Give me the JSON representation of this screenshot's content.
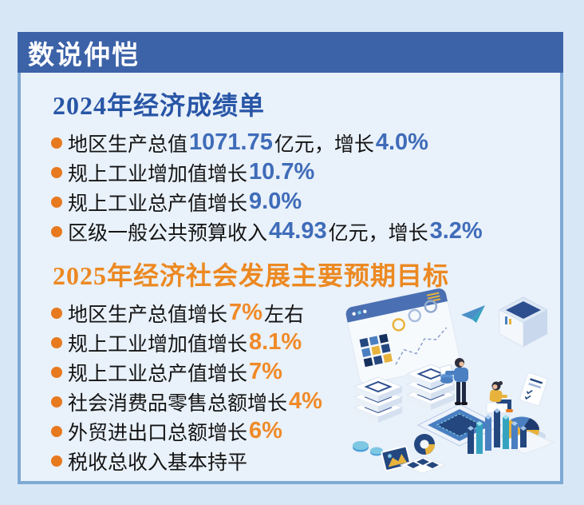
{
  "panel": {
    "header": {
      "title": "数说仲恺"
    },
    "colors": {
      "header_bg": "#3c62a8",
      "body_bg": "#e9f1fa",
      "border": "#7fa9d5",
      "page_bg": "#d8e7f6",
      "bullet": "#e7791f"
    }
  },
  "section_2024": {
    "heading": "2024年经济成绩单",
    "heading_color": "#2855a6",
    "number_color": "#3f6cb9",
    "items": [
      [
        {
          "t": "地区生产总值"
        },
        {
          "t": "1071.75",
          "hl": true
        },
        {
          "t": "亿元，增长"
        },
        {
          "t": "4.0%",
          "hl": true
        }
      ],
      [
        {
          "t": "规上工业增加值增长"
        },
        {
          "t": "10.7%",
          "hl": true
        }
      ],
      [
        {
          "t": "规上工业总产值增长"
        },
        {
          "t": "9.0%",
          "hl": true
        }
      ],
      [
        {
          "t": "区级一般公共预算收入"
        },
        {
          "t": "44.93",
          "hl": true
        },
        {
          "t": "亿元，增长"
        },
        {
          "t": "3.2%",
          "hl": true
        }
      ]
    ]
  },
  "section_2025": {
    "heading": "2025年经济社会发展主要预期目标",
    "heading_color": "#ec8922",
    "number_color": "#f08a28",
    "items": [
      [
        {
          "t": "地区生产总值增长"
        },
        {
          "t": "7%",
          "hl": true
        },
        {
          "t": "左右"
        }
      ],
      [
        {
          "t": "规上工业增加值增长"
        },
        {
          "t": "8.1%",
          "hl": true
        }
      ],
      [
        {
          "t": "规上工业总产值增长"
        },
        {
          "t": "7%",
          "hl": true
        }
      ],
      [
        {
          "t": "社会消费品零售总额增长"
        },
        {
          "t": "4%",
          "hl": true
        }
      ],
      [
        {
          "t": "外贸进出口总额增长"
        },
        {
          "t": "6%",
          "hl": true
        }
      ],
      [
        {
          "t": "税收总收入基本持平"
        }
      ]
    ]
  },
  "illustration": {
    "name": "isometric-data-analytics-scene",
    "palette": {
      "navy": "#24477f",
      "blue": "#4a7fc1",
      "yellow": "#e8b33c",
      "teal": "#35a3bf",
      "light": "#f7fafd"
    }
  }
}
